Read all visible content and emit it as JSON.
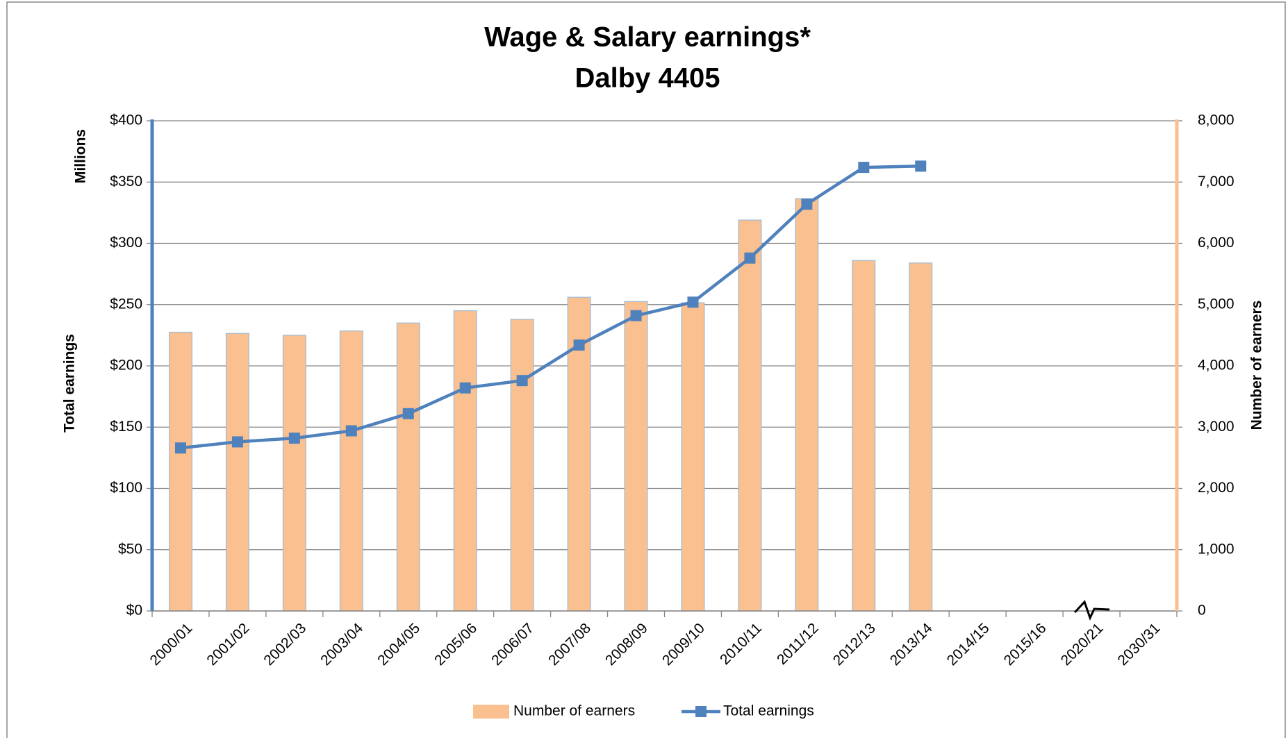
{
  "chart_data": {
    "type": "bar-line",
    "title": "Wage & Salary earnings*",
    "subtitle": "Dalby 4405",
    "y_label": "Total earnings",
    "y_unit_label": "Millions",
    "y2_label": "Number of earners",
    "categories": [
      "2000/01",
      "2001/02",
      "2002/03",
      "2003/04",
      "2004/05",
      "2005/06",
      "2006/07",
      "2007/08",
      "2008/09",
      "2009/10",
      "2010/11",
      "2011/12",
      "2012/13",
      "2013/14",
      "2014/15",
      "2015/16",
      "2020/21",
      "2030/31"
    ],
    "series": [
      {
        "name": "Number of earners",
        "type": "bar",
        "axis": "y2",
        "color": "#fac090",
        "edge_color": "#9bbbd9",
        "values": [
          4550,
          4530,
          4500,
          4570,
          4700,
          4900,
          4760,
          5120,
          5050,
          5030,
          6380,
          6730,
          5720,
          5680,
          null,
          null,
          null,
          null
        ]
      },
      {
        "name": "Total earnings",
        "type": "line",
        "axis": "y",
        "color": "#4f81bd",
        "values": [
          133,
          138,
          141,
          147,
          161,
          182,
          188,
          217,
          241,
          252,
          288,
          332,
          362,
          363,
          null,
          null,
          null,
          null
        ]
      }
    ],
    "ylim": [
      0,
      400
    ],
    "yticks": [
      {
        "value": 0,
        "label": "$0"
      },
      {
        "value": 50,
        "label": "$50"
      },
      {
        "value": 100,
        "label": "$100"
      },
      {
        "value": 150,
        "label": "$150"
      },
      {
        "value": 200,
        "label": "$200"
      },
      {
        "value": 250,
        "label": "$250"
      },
      {
        "value": 300,
        "label": "$300"
      },
      {
        "value": 350,
        "label": "$350"
      },
      {
        "value": 400,
        "label": "$400"
      }
    ],
    "y2lim": [
      0,
      8000
    ],
    "y2ticks": [
      0,
      {
        "value": 1000,
        "label": "1,000"
      },
      {
        "value": 2000,
        "label": "2,000"
      },
      {
        "value": 3000,
        "label": "3,000"
      },
      {
        "value": 4000,
        "label": "4,000"
      },
      {
        "value": 5000,
        "label": "5,000"
      },
      {
        "value": 6000,
        "label": "6,000"
      },
      {
        "value": 7000,
        "label": "7,000"
      },
      {
        "value": 8000,
        "label": "8,000"
      }
    ],
    "grid": true,
    "legend": "bottom"
  }
}
